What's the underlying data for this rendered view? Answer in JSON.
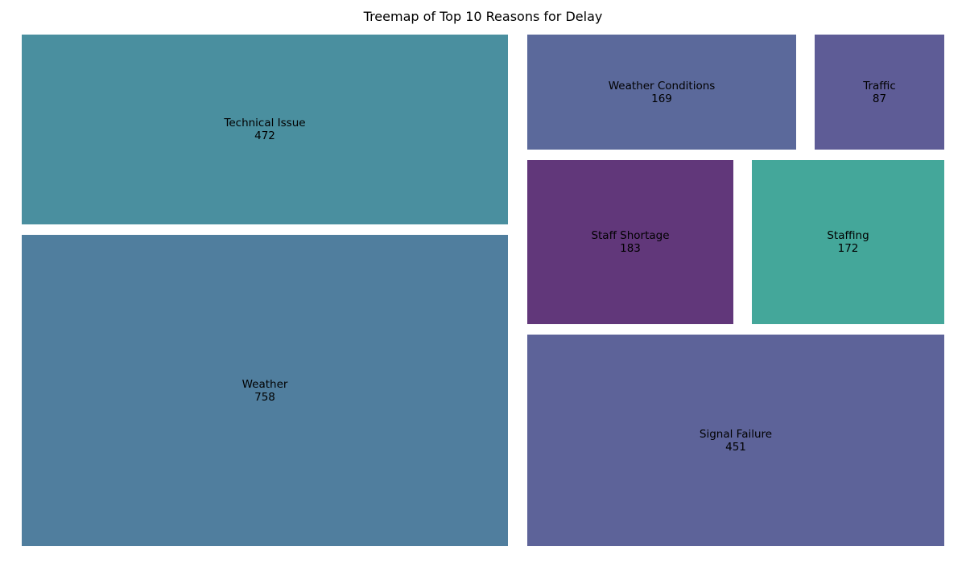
{
  "chart_data": {
    "type": "treemap",
    "title": "Treemap of Top 10 Reasons for Delay",
    "items": [
      {
        "label": "Technical Issue",
        "value": 472,
        "color": "#4A8F9F"
      },
      {
        "label": "Weather",
        "value": 758,
        "color": "#507E9E"
      },
      {
        "label": "Weather Conditions",
        "value": 169,
        "color": "#5B699B"
      },
      {
        "label": "Traffic",
        "value": 87,
        "color": "#5E5C96"
      },
      {
        "label": "Staff Shortage",
        "value": 183,
        "color": "#61377A"
      },
      {
        "label": "Staffing",
        "value": 172,
        "color": "#44A79A"
      },
      {
        "label": "Signal Failure",
        "value": 451,
        "color": "#5D6399"
      }
    ]
  }
}
